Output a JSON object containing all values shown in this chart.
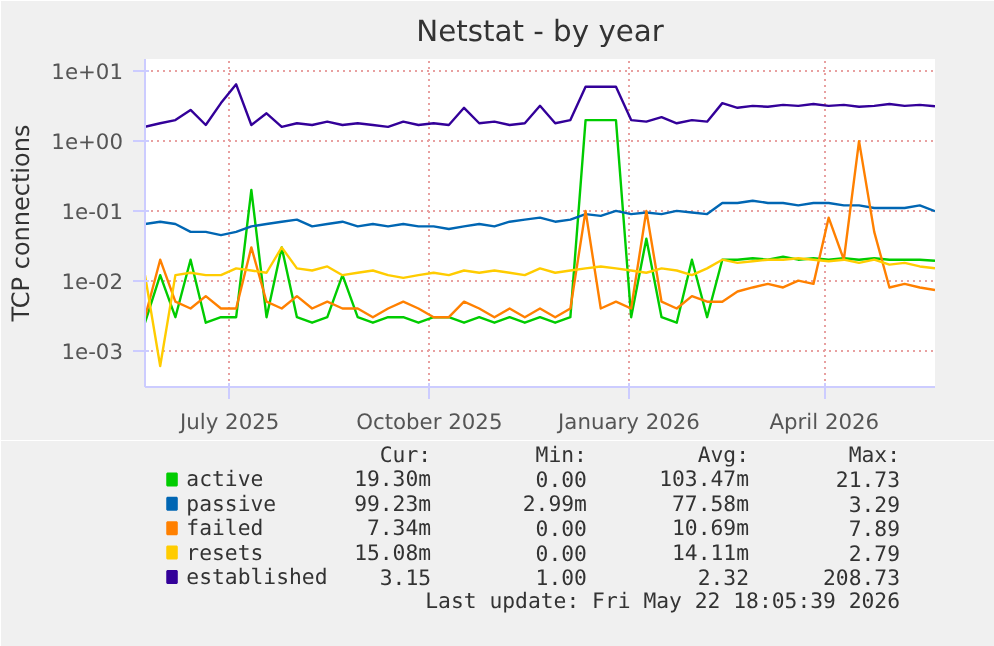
{
  "chart_data": {
    "type": "line",
    "title": "Netstat - by year",
    "ylabel": "TCP connections",
    "log": "y",
    "grid": true,
    "legend": "bottom",
    "marker": "none",
    "line_style": "solid",
    "x": [
      "2025-05-23",
      "2025-05-30",
      "2025-06-06",
      "2025-06-13",
      "2025-06-20",
      "2025-06-27",
      "2025-07-04",
      "2025-07-11",
      "2025-07-18",
      "2025-07-25",
      "2025-08-01",
      "2025-08-08",
      "2025-08-15",
      "2025-08-22",
      "2025-08-29",
      "2025-09-05",
      "2025-09-12",
      "2025-09-19",
      "2025-09-26",
      "2025-10-03",
      "2025-10-10",
      "2025-10-17",
      "2025-10-24",
      "2025-10-31",
      "2025-11-07",
      "2025-11-14",
      "2025-11-21",
      "2025-11-28",
      "2025-12-05",
      "2025-12-12",
      "2025-12-19",
      "2025-12-26",
      "2026-01-02",
      "2026-01-09",
      "2026-01-16",
      "2026-01-23",
      "2026-01-30",
      "2026-02-06",
      "2026-02-13",
      "2026-02-20",
      "2026-02-27",
      "2026-03-06",
      "2026-03-13",
      "2026-03-20",
      "2026-03-27",
      "2026-04-03",
      "2026-04-10",
      "2026-04-17",
      "2026-04-24",
      "2026-05-01",
      "2026-05-08",
      "2026-05-15",
      "2026-05-22"
    ],
    "xlim": [
      "2025-05-23",
      "2026-05-22"
    ],
    "xticks": [
      {
        "value": "2025-07-01",
        "label": "July 2025"
      },
      {
        "value": "2025-10-01",
        "label": "October 2025"
      },
      {
        "value": "2026-01-01",
        "label": "January 2026"
      },
      {
        "value": "2026-04-01",
        "label": "April 2026"
      }
    ],
    "ylim": [
      0.0003,
      15
    ],
    "yticks": [
      {
        "value": 0.001,
        "label": "1e-03"
      },
      {
        "value": 0.01,
        "label": "1e-02"
      },
      {
        "value": 0.1,
        "label": "1e-01"
      },
      {
        "value": 1,
        "label": "1e+00"
      },
      {
        "value": 10,
        "label": "1e+01"
      }
    ],
    "series": [
      {
        "name": "active",
        "color": "#00cc00",
        "values": [
          0.0025,
          0.012,
          0.003,
          0.02,
          0.0025,
          0.003,
          0.003,
          0.2,
          0.003,
          0.03,
          0.003,
          0.0025,
          0.003,
          0.012,
          0.003,
          0.0025,
          0.003,
          0.003,
          0.0025,
          0.003,
          0.003,
          0.0025,
          0.003,
          0.0025,
          0.003,
          0.0025,
          0.003,
          0.0025,
          0.003,
          2.0,
          2.0,
          2.0,
          0.003,
          0.04,
          0.003,
          0.0025,
          0.02,
          0.003,
          0.02,
          0.02,
          0.021,
          0.02,
          0.022,
          0.02,
          0.021,
          0.02,
          0.021,
          0.02,
          0.021,
          0.02,
          0.02,
          0.02,
          0.0193
        ]
      },
      {
        "name": "passive",
        "color": "#0066b3",
        "values": [
          0.065,
          0.07,
          0.065,
          0.05,
          0.05,
          0.045,
          0.05,
          0.06,
          0.065,
          0.07,
          0.075,
          0.06,
          0.065,
          0.07,
          0.06,
          0.065,
          0.06,
          0.065,
          0.06,
          0.06,
          0.055,
          0.06,
          0.065,
          0.06,
          0.07,
          0.075,
          0.08,
          0.07,
          0.075,
          0.09,
          0.085,
          0.1,
          0.09,
          0.095,
          0.09,
          0.1,
          0.095,
          0.09,
          0.13,
          0.13,
          0.14,
          0.13,
          0.13,
          0.12,
          0.13,
          0.13,
          0.12,
          0.12,
          0.11,
          0.11,
          0.11,
          0.12,
          0.099
        ]
      },
      {
        "name": "failed",
        "color": "#ff8000",
        "values": [
          0.003,
          0.02,
          0.005,
          0.004,
          0.006,
          0.004,
          0.004,
          0.03,
          0.005,
          0.004,
          0.006,
          0.004,
          0.005,
          0.004,
          0.004,
          0.003,
          0.004,
          0.005,
          0.004,
          0.003,
          0.003,
          0.005,
          0.004,
          0.003,
          0.004,
          0.003,
          0.004,
          0.003,
          0.004,
          0.1,
          0.004,
          0.005,
          0.004,
          0.1,
          0.005,
          0.004,
          0.006,
          0.005,
          0.005,
          0.007,
          0.008,
          0.009,
          0.008,
          0.01,
          0.009,
          0.08,
          0.02,
          1.0,
          0.05,
          0.008,
          0.009,
          0.008,
          0.00734
        ]
      },
      {
        "name": "resets",
        "color": "#ffcc00",
        "values": [
          0.012,
          0.0006,
          0.012,
          0.013,
          0.012,
          0.012,
          0.015,
          0.014,
          0.013,
          0.03,
          0.015,
          0.014,
          0.016,
          0.012,
          0.013,
          0.014,
          0.012,
          0.011,
          0.012,
          0.013,
          0.012,
          0.014,
          0.013,
          0.014,
          0.013,
          0.012,
          0.015,
          0.013,
          0.014,
          0.015,
          0.016,
          0.015,
          0.014,
          0.013,
          0.015,
          0.014,
          0.012,
          0.015,
          0.02,
          0.018,
          0.019,
          0.02,
          0.02,
          0.021,
          0.02,
          0.019,
          0.02,
          0.018,
          0.02,
          0.017,
          0.018,
          0.016,
          0.01508
        ]
      },
      {
        "name": "established",
        "color": "#330099",
        "values": [
          1.6,
          1.8,
          2.0,
          2.8,
          1.7,
          3.5,
          6.5,
          1.7,
          2.5,
          1.6,
          1.8,
          1.7,
          1.9,
          1.7,
          1.8,
          1.7,
          1.6,
          1.9,
          1.7,
          1.8,
          1.7,
          3.0,
          1.8,
          1.9,
          1.7,
          1.8,
          3.2,
          1.8,
          2.0,
          6.0,
          6.0,
          6.0,
          2.0,
          1.9,
          2.2,
          1.8,
          2.0,
          1.9,
          3.5,
          3.0,
          3.2,
          3.1,
          3.3,
          3.2,
          3.4,
          3.2,
          3.3,
          3.1,
          3.2,
          3.4,
          3.2,
          3.3,
          3.15
        ]
      }
    ],
    "annotations": [
      "Cur:",
      "Min:",
      "Avg:",
      "Max:",
      "19.30m",
      "0.00",
      "103.47m",
      "21.73",
      "99.23m",
      "2.99m",
      "77.58m",
      "3.29",
      "7.34m",
      "0.00",
      "10.69m",
      "7.89",
      "15.08m",
      "0.00",
      "14.11m",
      "2.79",
      "3.15",
      "1.00",
      "2.32",
      "208.73",
      "Last update: Fri May 22 18:05:39 2026"
    ]
  }
}
